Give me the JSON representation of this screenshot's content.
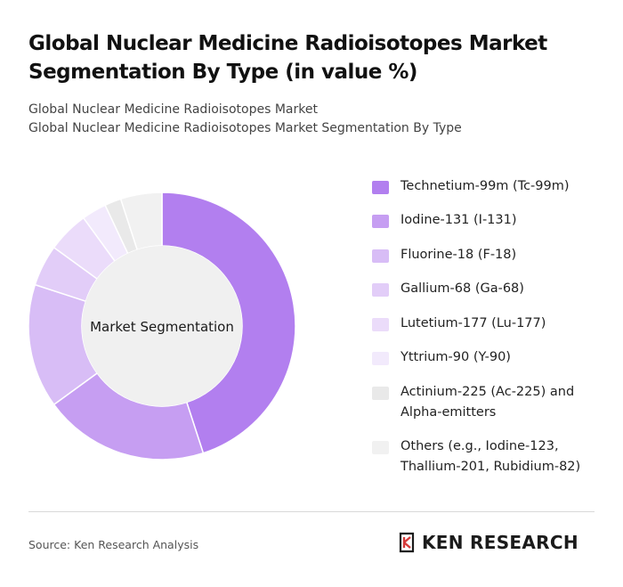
{
  "title": "Global Nuclear Medicine Radioisotopes Market Segmentation By Type (in value %)",
  "subtitle_line1": "Global Nuclear Medicine Radioisotopes Market",
  "subtitle_line2": "Global Nuclear Medicine Radioisotopes Market Segmentation By Type",
  "source": "Source: Ken Research Analysis",
  "brand": "KEN RESEARCH",
  "chart_data": {
    "type": "pie",
    "variant": "donut",
    "center_label": "Market Segmentation",
    "categories": [
      "Technetium-99m (Tc-99m)",
      "Iodine-131 (I-131)",
      "Fluorine-18 (F-18)",
      "Gallium-68 (Ga-68)",
      "Lutetium-177 (Lu-177)",
      "Yttrium-90 (Y-90)",
      "Actinium-225 (Ac-225) and Alpha-emitters",
      "Others (e.g., Iodine-123, Thallium-201, Rubidium-82)"
    ],
    "values": [
      45,
      20,
      15,
      5,
      5,
      3,
      2,
      5
    ],
    "colors": [
      "#b27fef",
      "#c69ef2",
      "#d8bdf6",
      "#e2cdf8",
      "#ebdcfa",
      "#f2eafc",
      "#e9e9e9",
      "#f1f1f1"
    ],
    "legend_position": "right"
  }
}
